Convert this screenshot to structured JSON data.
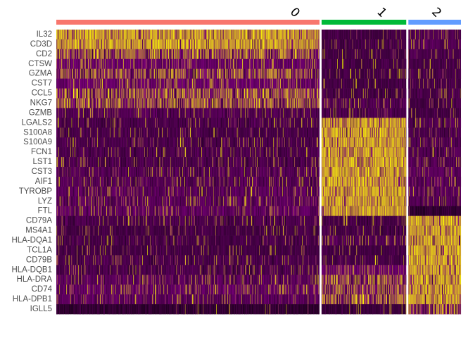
{
  "chart_data": {
    "type": "heatmap",
    "title": "",
    "xlabel": "",
    "ylabel": "",
    "grid": false,
    "legend": "none",
    "color_scale": {
      "low": "#000000",
      "mid": "#800080",
      "high": "#ffff00"
    },
    "clusters": [
      {
        "name": "0",
        "color": "#f8766d",
        "cell_count": 640
      },
      {
        "name": "1",
        "color": "#00ba38",
        "cell_count": 206
      },
      {
        "name": "2",
        "color": "#619cff",
        "cell_count": 128
      }
    ],
    "genes": [
      "IL32",
      "CD3D",
      "CD2",
      "CTSW",
      "GZMA",
      "CST7",
      "CCL5",
      "NKG7",
      "GZMB",
      "LGALS2",
      "S100A8",
      "S100A9",
      "FCN1",
      "LST1",
      "CST3",
      "AIF1",
      "TYROBP",
      "LYZ",
      "FTL",
      "CD79A",
      "MS4A1",
      "HLA-DQA1",
      "TCL1A",
      "CD79B",
      "HLA-DQB1",
      "HLA-DRA",
      "CD74",
      "HLA-DPB1",
      "IGLL5"
    ],
    "mean_scaled_expression": [
      [
        0.82,
        0.2,
        0.3
      ],
      [
        0.8,
        0.22,
        0.32
      ],
      [
        0.72,
        0.2,
        0.25
      ],
      [
        0.45,
        0.2,
        0.22
      ],
      [
        0.55,
        0.2,
        0.22
      ],
      [
        0.45,
        0.2,
        0.22
      ],
      [
        0.6,
        0.22,
        0.25
      ],
      [
        0.55,
        0.3,
        0.22
      ],
      [
        0.3,
        0.25,
        0.2
      ],
      [
        0.25,
        0.92,
        0.28
      ],
      [
        0.22,
        0.95,
        0.25
      ],
      [
        0.25,
        0.95,
        0.28
      ],
      [
        0.25,
        0.88,
        0.28
      ],
      [
        0.25,
        0.85,
        0.3
      ],
      [
        0.3,
        0.85,
        0.35
      ],
      [
        0.3,
        0.85,
        0.35
      ],
      [
        0.35,
        0.88,
        0.35
      ],
      [
        0.35,
        0.95,
        0.3
      ],
      [
        0.38,
        0.9,
        0.1
      ],
      [
        0.25,
        0.22,
        0.95
      ],
      [
        0.2,
        0.22,
        0.92
      ],
      [
        0.22,
        0.3,
        0.85
      ],
      [
        0.2,
        0.2,
        0.8
      ],
      [
        0.25,
        0.22,
        0.88
      ],
      [
        0.25,
        0.45,
        0.85
      ],
      [
        0.35,
        0.6,
        0.9
      ],
      [
        0.4,
        0.62,
        0.85
      ],
      [
        0.35,
        0.55,
        0.85
      ],
      [
        0.1,
        0.15,
        0.65
      ]
    ]
  }
}
